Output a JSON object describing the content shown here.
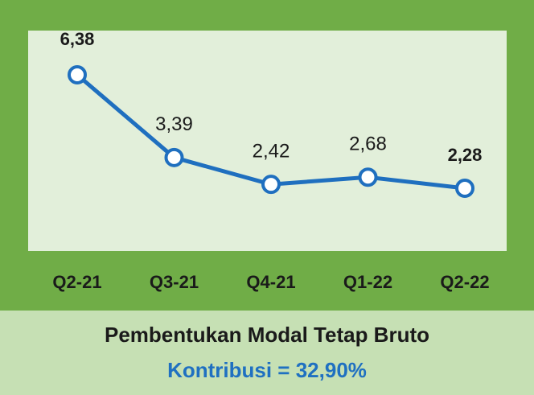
{
  "chart_data": {
    "type": "line",
    "title": "Pembentukan Modal Tetap Bruto",
    "subtitle": "Kontribusi = 32,90%",
    "categories": [
      "Q2-21",
      "Q3-21",
      "Q4-21",
      "Q1-22",
      "Q2-22"
    ],
    "series": [
      {
        "color": "#1f6fbf",
        "values": [
          6.38,
          3.39,
          2.42,
          2.68,
          2.28
        ],
        "value_labels": [
          "6,38",
          "3,39",
          "2,42",
          "2,68",
          "2,28"
        ]
      }
    ]
  }
}
